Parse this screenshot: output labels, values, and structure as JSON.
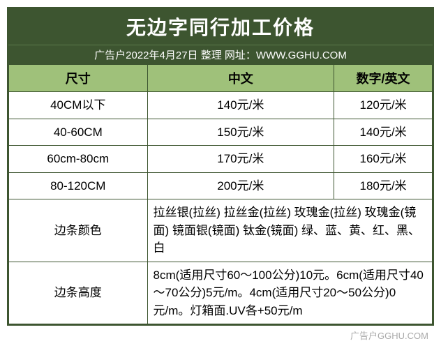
{
  "title": "无边字同行加工价格",
  "subtitle": "广告户2022年4月27日 整理 网址：WWW.GGHU.COM",
  "headers": {
    "size": "尺寸",
    "cn": "中文",
    "en": "数字/英文"
  },
  "rows": [
    {
      "size": "40CM以下",
      "cn": "140元/米",
      "en": "120元/米"
    },
    {
      "size": "40-60CM",
      "cn": "150元/米",
      "en": "140元/米"
    },
    {
      "size": "60cm-80cm",
      "cn": "170元/米",
      "en": "160元/米"
    },
    {
      "size": "80-120CM",
      "cn": "200元/米",
      "en": "180元/米"
    }
  ],
  "color_label": "边条颜色",
  "color_text": "拉丝银(拉丝) 拉丝金(拉丝) 玫瑰金(拉丝) 玫瑰金(镜面) 镜面银(镜面) 钛金(镜面) 绿、蓝、黄、红、黑、白",
  "height_label": "边条高度",
  "height_text": "8cm(适用尺寸60～100公分)10元。6cm(适用尺寸40～70公分)5元/m。4cm(适用尺寸20～50公分)0元/m。灯箱面.UV各+50元/m",
  "watermark": "广告户GGHU.COM",
  "colors": {
    "header_bg": "#3d5530",
    "th_bg": "#9fc17a",
    "border": "#3d5530"
  }
}
